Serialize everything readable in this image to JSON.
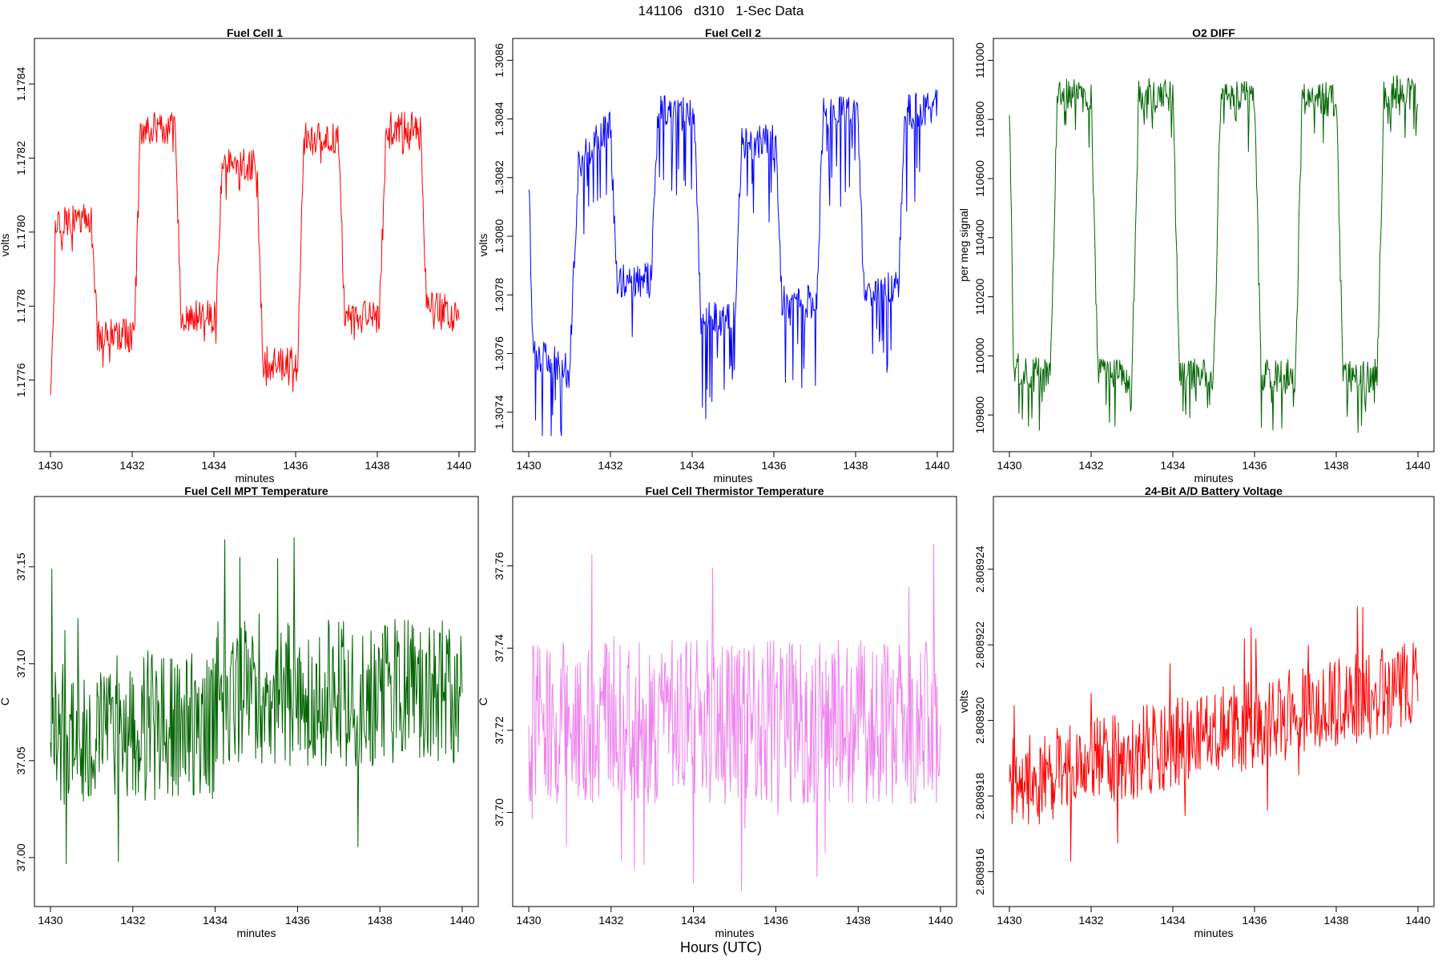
{
  "figure": {
    "suptitle": "141106   d310   1-Sec Data",
    "bottom_label": "Hours (UTC)"
  },
  "chart_data": [
    {
      "type": "line",
      "title": "Fuel Cell 1",
      "xlabel": "minutes",
      "ylabel": "volts",
      "color": "#ff0000",
      "xlim": [
        1430,
        1440
      ],
      "ylim": [
        1.17745,
        1.17848
      ],
      "x_ticks": [
        1430,
        1432,
        1434,
        1436,
        1438,
        1440
      ],
      "x_tick_labels": [
        "1430",
        "1432",
        "1434",
        "1436",
        "1438",
        "1440"
      ],
      "y_ticks": [
        1.1776,
        1.1778,
        1.178,
        1.1782,
        1.1784
      ],
      "y_tick_labels": [
        "1.1776",
        "1.1778",
        "1.1780",
        "1.1782",
        "1.1784"
      ],
      "series": [
        {
          "name": "Fuel Cell 1",
          "segments": [
            {
              "x0": 1430.0,
              "x1": 1430.1,
              "y0": 1.17758,
              "y1": 1.1779
            },
            {
              "x0": 1430.1,
              "x1": 1431.0,
              "y0": 1.17803,
              "y1": 1.17803
            },
            {
              "x0": 1431.0,
              "x1": 1431.15,
              "y0": 1.17803,
              "y1": 1.17772
            },
            {
              "x0": 1431.15,
              "x1": 1432.05,
              "y0": 1.17772,
              "y1": 1.17772
            },
            {
              "x0": 1432.05,
              "x1": 1432.2,
              "y0": 1.17772,
              "y1": 1.17825
            },
            {
              "x0": 1432.2,
              "x1": 1433.05,
              "y0": 1.17828,
              "y1": 1.17828
            },
            {
              "x0": 1433.05,
              "x1": 1433.2,
              "y0": 1.17828,
              "y1": 1.17777
            },
            {
              "x0": 1433.2,
              "x1": 1434.05,
              "y0": 1.17777,
              "y1": 1.17777
            },
            {
              "x0": 1434.05,
              "x1": 1434.2,
              "y0": 1.17777,
              "y1": 1.17818
            },
            {
              "x0": 1434.2,
              "x1": 1435.05,
              "y0": 1.17818,
              "y1": 1.17818
            },
            {
              "x0": 1435.05,
              "x1": 1435.2,
              "y0": 1.17818,
              "y1": 1.17765
            },
            {
              "x0": 1435.2,
              "x1": 1436.05,
              "y0": 1.17765,
              "y1": 1.17765
            },
            {
              "x0": 1436.05,
              "x1": 1436.2,
              "y0": 1.17765,
              "y1": 1.17822
            },
            {
              "x0": 1436.2,
              "x1": 1437.05,
              "y0": 1.17825,
              "y1": 1.17825
            },
            {
              "x0": 1437.05,
              "x1": 1437.2,
              "y0": 1.17825,
              "y1": 1.17777
            },
            {
              "x0": 1437.2,
              "x1": 1438.05,
              "y0": 1.17777,
              "y1": 1.17777
            },
            {
              "x0": 1438.05,
              "x1": 1438.2,
              "y0": 1.17777,
              "y1": 1.17822
            },
            {
              "x0": 1438.2,
              "x1": 1439.05,
              "y0": 1.17828,
              "y1": 1.17828
            },
            {
              "x0": 1439.05,
              "x1": 1439.2,
              "y0": 1.17828,
              "y1": 1.17782
            },
            {
              "x0": 1439.2,
              "x1": 1440.0,
              "y0": 1.1778,
              "y1": 1.17778
            }
          ],
          "noise": 4.5e-05,
          "spike_down": 4e-05
        }
      ]
    },
    {
      "type": "line",
      "title": "Fuel Cell 2",
      "xlabel": "minutes",
      "ylabel": "volts",
      "color": "#0000ff",
      "xlim": [
        1430,
        1440
      ],
      "ylim": [
        1.30732,
        1.30862
      ],
      "x_ticks": [
        1430,
        1432,
        1434,
        1436,
        1438,
        1440
      ],
      "x_tick_labels": [
        "1430",
        "1432",
        "1434",
        "1436",
        "1438",
        "1440"
      ],
      "y_ticks": [
        1.3074,
        1.3076,
        1.3078,
        1.308,
        1.3082,
        1.3084,
        1.3086
      ],
      "y_tick_labels": [
        "1.3074",
        "1.3076",
        "1.3078",
        "1.3080",
        "1.3082",
        "1.3084",
        "1.3086"
      ],
      "series": [
        {
          "name": "Fuel Cell 2",
          "segments": [
            {
              "x0": 1430.0,
              "x1": 1430.1,
              "y0": 1.30818,
              "y1": 1.30765
            },
            {
              "x0": 1430.1,
              "x1": 1431.0,
              "y0": 1.3076,
              "y1": 1.30754
            },
            {
              "x0": 1431.0,
              "x1": 1431.2,
              "y0": 1.30754,
              "y1": 1.3082
            },
            {
              "x0": 1431.2,
              "x1": 1432.0,
              "y0": 1.30825,
              "y1": 1.30838
            },
            {
              "x0": 1432.0,
              "x1": 1432.15,
              "y0": 1.30838,
              "y1": 1.30788
            },
            {
              "x0": 1432.15,
              "x1": 1433.0,
              "y0": 1.30785,
              "y1": 1.30785
            },
            {
              "x0": 1433.0,
              "x1": 1433.15,
              "y0": 1.30785,
              "y1": 1.30838
            },
            {
              "x0": 1433.15,
              "x1": 1434.05,
              "y0": 1.30842,
              "y1": 1.30842
            },
            {
              "x0": 1434.05,
              "x1": 1434.2,
              "y0": 1.30842,
              "y1": 1.30775
            },
            {
              "x0": 1434.2,
              "x1": 1435.05,
              "y0": 1.30772,
              "y1": 1.30772
            },
            {
              "x0": 1435.05,
              "x1": 1435.2,
              "y0": 1.30772,
              "y1": 1.3083
            },
            {
              "x0": 1435.2,
              "x1": 1436.05,
              "y0": 1.30832,
              "y1": 1.30832
            },
            {
              "x0": 1436.05,
              "x1": 1436.2,
              "y0": 1.30832,
              "y1": 1.30778
            },
            {
              "x0": 1436.2,
              "x1": 1437.05,
              "y0": 1.30778,
              "y1": 1.30778
            },
            {
              "x0": 1437.05,
              "x1": 1437.2,
              "y0": 1.30778,
              "y1": 1.30838
            },
            {
              "x0": 1437.2,
              "x1": 1438.05,
              "y0": 1.30842,
              "y1": 1.30842
            },
            {
              "x0": 1438.05,
              "x1": 1438.2,
              "y0": 1.30842,
              "y1": 1.30782
            },
            {
              "x0": 1438.2,
              "x1": 1439.05,
              "y0": 1.30782,
              "y1": 1.30782
            },
            {
              "x0": 1439.05,
              "x1": 1439.2,
              "y0": 1.30782,
              "y1": 1.30835
            },
            {
              "x0": 1439.2,
              "x1": 1440.0,
              "y0": 1.30842,
              "y1": 1.30845
            }
          ],
          "noise": 6e-05,
          "spike_down": 0.00022
        }
      ]
    },
    {
      "type": "line",
      "title": "O2 DIFF",
      "xlabel": "minutes",
      "ylabel": "per meg signal",
      "color": "#006400",
      "xlim": [
        1430,
        1440
      ],
      "ylim": [
        109730,
        111020
      ],
      "x_ticks": [
        1430,
        1432,
        1434,
        1436,
        1438,
        1440
      ],
      "x_tick_labels": [
        "1430",
        "1432",
        "1434",
        "1436",
        "1438",
        "1440"
      ],
      "y_ticks": [
        109800,
        110000,
        110200,
        110400,
        110600,
        110800,
        111000
      ],
      "y_tick_labels": [
        "109800",
        "110000",
        "110200",
        "110400",
        "110600",
        "110800",
        "111000"
      ],
      "series": [
        {
          "name": "O2 DIFF",
          "segments": [
            {
              "x0": 1430.0,
              "x1": 1430.1,
              "y0": 110830,
              "y1": 110020
            },
            {
              "x0": 1430.1,
              "x1": 1431.0,
              "y0": 109950,
              "y1": 109930
            },
            {
              "x0": 1431.0,
              "x1": 1431.15,
              "y0": 109930,
              "y1": 110750
            },
            {
              "x0": 1431.15,
              "x1": 1432.0,
              "y0": 110880,
              "y1": 110880
            },
            {
              "x0": 1432.0,
              "x1": 1432.15,
              "y0": 110880,
              "y1": 110030
            },
            {
              "x0": 1432.15,
              "x1": 1433.0,
              "y0": 109930,
              "y1": 109930
            },
            {
              "x0": 1433.0,
              "x1": 1433.15,
              "y0": 109930,
              "y1": 110800
            },
            {
              "x0": 1433.15,
              "x1": 1434.0,
              "y0": 110880,
              "y1": 110880
            },
            {
              "x0": 1434.0,
              "x1": 1434.15,
              "y0": 110880,
              "y1": 110030
            },
            {
              "x0": 1434.15,
              "x1": 1435.0,
              "y0": 109930,
              "y1": 109930
            },
            {
              "x0": 1435.0,
              "x1": 1435.15,
              "y0": 109930,
              "y1": 110750
            },
            {
              "x0": 1435.15,
              "x1": 1436.0,
              "y0": 110870,
              "y1": 110870
            },
            {
              "x0": 1436.0,
              "x1": 1436.15,
              "y0": 110870,
              "y1": 110010
            },
            {
              "x0": 1436.15,
              "x1": 1437.0,
              "y0": 109930,
              "y1": 109930
            },
            {
              "x0": 1437.0,
              "x1": 1437.15,
              "y0": 109930,
              "y1": 110780
            },
            {
              "x0": 1437.15,
              "x1": 1438.0,
              "y0": 110870,
              "y1": 110870
            },
            {
              "x0": 1438.0,
              "x1": 1438.15,
              "y0": 110870,
              "y1": 110020
            },
            {
              "x0": 1438.15,
              "x1": 1439.0,
              "y0": 109930,
              "y1": 109930
            },
            {
              "x0": 1439.0,
              "x1": 1439.15,
              "y0": 109930,
              "y1": 110780
            },
            {
              "x0": 1439.15,
              "x1": 1440.0,
              "y0": 110890,
              "y1": 110890
            }
          ],
          "noise": 60,
          "spike_down": 110
        }
      ]
    },
    {
      "type": "line",
      "title": "Fuel Cell MPT Temperature",
      "xlabel": "minutes",
      "ylabel": "C",
      "color": "#006400",
      "xlim": [
        1430,
        1440
      ],
      "ylim": [
        36.983,
        37.178
      ],
      "x_ticks": [
        1430,
        1432,
        1434,
        1436,
        1438,
        1440
      ],
      "x_tick_labels": [
        "1430",
        "1432",
        "1434",
        "1436",
        "1438",
        "1440"
      ],
      "y_ticks": [
        37.0,
        37.05,
        37.1,
        37.15
      ],
      "y_tick_labels": [
        "37.00",
        "37.05",
        "37.10",
        "37.15"
      ],
      "series": [
        {
          "name": "MPT Temperature",
          "segments": [
            {
              "x0": 1430.0,
              "x1": 1434.0,
              "y0": 37.065,
              "y1": 37.068
            },
            {
              "x0": 1434.0,
              "x1": 1440.0,
              "y0": 37.085,
              "y1": 37.085
            }
          ],
          "noise": 0.038,
          "spike_down": 0.0
        }
      ]
    },
    {
      "type": "line",
      "title": "Fuel Cell Thermistor Temperature",
      "xlabel": "minutes",
      "ylabel": "C",
      "color": "#ee82ee",
      "xlim": [
        1430,
        1440
      ],
      "ylim": [
        37.681,
        37.773
      ],
      "x_ticks": [
        1430,
        1432,
        1434,
        1436,
        1438,
        1440
      ],
      "x_tick_labels": [
        "1430",
        "1432",
        "1434",
        "1436",
        "1438",
        "1440"
      ],
      "y_ticks": [
        37.7,
        37.72,
        37.74,
        37.76
      ],
      "y_tick_labels": [
        "37.70",
        "37.72",
        "37.74",
        "37.76"
      ],
      "series": [
        {
          "name": "Thermistor Temperature",
          "segments": [
            {
              "x0": 1430.0,
              "x1": 1440.0,
              "y0": 37.722,
              "y1": 37.722
            }
          ],
          "noise": 0.02,
          "spike_down": 0.0
        }
      ]
    },
    {
      "type": "line",
      "title": "24-Bit A/D Battery Voltage",
      "xlabel": "minutes",
      "ylabel": "volts",
      "color": "#ff0000",
      "xlim": [
        1430,
        1440
      ],
      "ylim": [
        2.8089155,
        2.8089255
      ],
      "x_ticks": [
        1430,
        1432,
        1434,
        1436,
        1438,
        1440
      ],
      "x_tick_labels": [
        "1430",
        "1432",
        "1434",
        "1436",
        "1438",
        "1440"
      ],
      "y_ticks": [
        2.808916,
        2.808918,
        2.80892,
        2.808922,
        2.808924
      ],
      "y_tick_labels": [
        "2.808916",
        "2.808918",
        "2.808920",
        "2.808922",
        "2.808924"
      ],
      "series": [
        {
          "name": "Battery Voltage",
          "segments": [
            {
              "x0": 1430.0,
              "x1": 1440.0,
              "y0": 2.8089183,
              "y1": 2.808921
            }
          ],
          "noise": 1.2e-06,
          "spike_down": 0.0
        }
      ]
    }
  ]
}
